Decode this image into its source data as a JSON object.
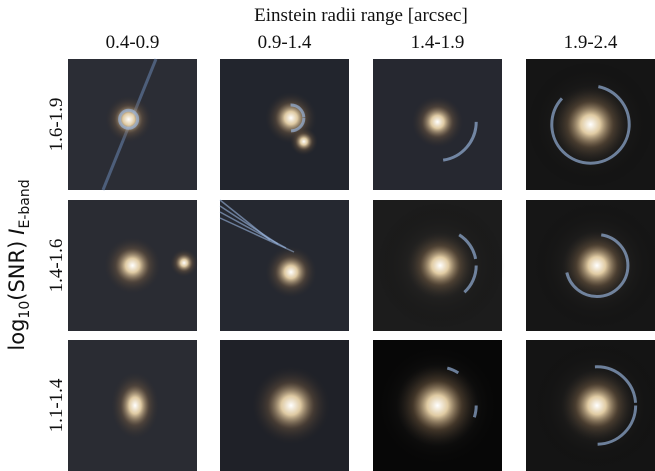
{
  "title": "Einstein radii range [arcsec]",
  "columns": [
    "0.4-0.9",
    "0.9-1.4",
    "1.4-1.9",
    "1.9-2.4"
  ],
  "rows": [
    "1.6-1.9",
    "1.4-1.6",
    "1.1-1.4"
  ],
  "y_label": {
    "func": "log",
    "func_sub": "10",
    "arg": "(SNR)",
    "var": "I",
    "var_sub": "E-band"
  }
}
